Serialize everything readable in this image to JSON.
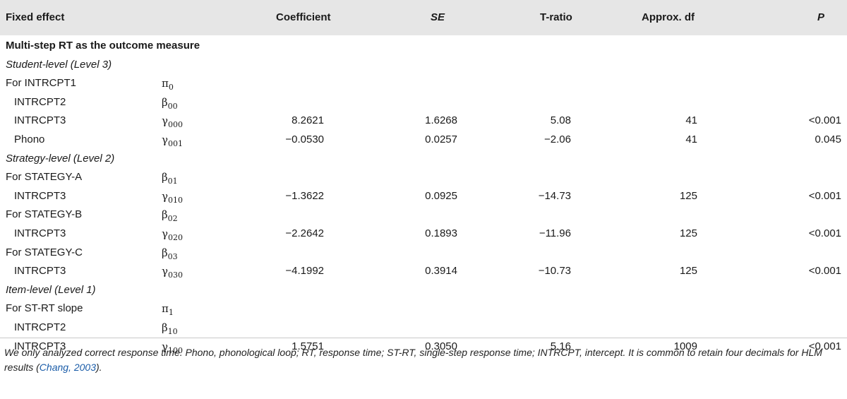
{
  "header": {
    "fixed_effect": "Fixed effect",
    "coefficient": "Coefficient",
    "se": "SE",
    "t_ratio": "T-ratio",
    "approx_df": "Approx. df",
    "p": "P"
  },
  "rows": [
    {
      "label": "Multi-step RT as the outcome measure",
      "style": "bold",
      "sym": "",
      "sub": "",
      "coef": "",
      "se": "",
      "t": "",
      "df": "",
      "p": ""
    },
    {
      "label": "Student-level (Level 3)",
      "style": "ital",
      "sym": "",
      "sub": "",
      "coef": "",
      "se": "",
      "t": "",
      "df": "",
      "p": ""
    },
    {
      "label": "For INTRCPT1",
      "style": "",
      "sym": "π",
      "sub": "0",
      "coef": "",
      "se": "",
      "t": "",
      "df": "",
      "p": ""
    },
    {
      "label": "INTRCPT2",
      "style": "indent",
      "sym": "β",
      "sub": "00",
      "coef": "",
      "se": "",
      "t": "",
      "df": "",
      "p": ""
    },
    {
      "label": "INTRCPT3",
      "style": "indent",
      "sym": "γ",
      "sub": "000",
      "coef": "8.2621",
      "se": "1.6268",
      "t": "5.08",
      "df": "41",
      "p": "<0.001"
    },
    {
      "label": "Phono",
      "style": "indent",
      "sym": "γ",
      "sub": "001",
      "coef": "−0.0530",
      "se": "0.0257",
      "t": "−2.06",
      "df": "41",
      "p": "0.045"
    },
    {
      "label": "Strategy-level (Level 2)",
      "style": "ital",
      "sym": "",
      "sub": "",
      "coef": "",
      "se": "",
      "t": "",
      "df": "",
      "p": ""
    },
    {
      "label": "For STATEGY-A",
      "style": "",
      "sym": "β",
      "sub": "01",
      "coef": "",
      "se": "",
      "t": "",
      "df": "",
      "p": ""
    },
    {
      "label": "INTRCPT3",
      "style": "indent",
      "sym": "γ",
      "sub": "010",
      "coef": "−1.3622",
      "se": "0.0925",
      "t": "−14.73",
      "df": "125",
      "p": "<0.001"
    },
    {
      "label": "For STATEGY-B",
      "style": "",
      "sym": "β",
      "sub": "02",
      "coef": "",
      "se": "",
      "t": "",
      "df": "",
      "p": ""
    },
    {
      "label": "INTRCPT3",
      "style": "indent",
      "sym": "γ",
      "sub": "020",
      "coef": "−2.2642",
      "se": "0.1893",
      "t": "−11.96",
      "df": "125",
      "p": "<0.001"
    },
    {
      "label": "For STATEGY-C",
      "style": "",
      "sym": "β",
      "sub": "03",
      "coef": "",
      "se": "",
      "t": "",
      "df": "",
      "p": ""
    },
    {
      "label": "INTRCPT3",
      "style": "indent",
      "sym": "γ",
      "sub": "030",
      "coef": "−4.1992",
      "se": "0.3914",
      "t": "−10.73",
      "df": "125",
      "p": "<0.001"
    },
    {
      "label": "Item-level (Level 1)",
      "style": "ital",
      "sym": "",
      "sub": "",
      "coef": "",
      "se": "",
      "t": "",
      "df": "",
      "p": ""
    },
    {
      "label": "For ST-RT slope",
      "style": "",
      "sym": "π",
      "sub": "1",
      "coef": "",
      "se": "",
      "t": "",
      "df": "",
      "p": ""
    },
    {
      "label": "INTRCPT2",
      "style": "indent",
      "sym": "β",
      "sub": "10",
      "coef": "",
      "se": "",
      "t": "",
      "df": "",
      "p": ""
    },
    {
      "label": "INTRCPT3",
      "style": "indent",
      "sym": "γ",
      "sub": "100",
      "coef": "1.5751",
      "se": "0.3050",
      "t": "5.16",
      "df": "1009",
      "p": "<0.001"
    }
  ],
  "footnote": {
    "text": "We only analyzed correct response time. Phono, phonological loop; RT, response time; ST-RT, single-step response time; INTRCPT, intercept. It is common to retain four decimals for HLM results (",
    "citation": "Chang, 2003",
    "end": ")."
  }
}
